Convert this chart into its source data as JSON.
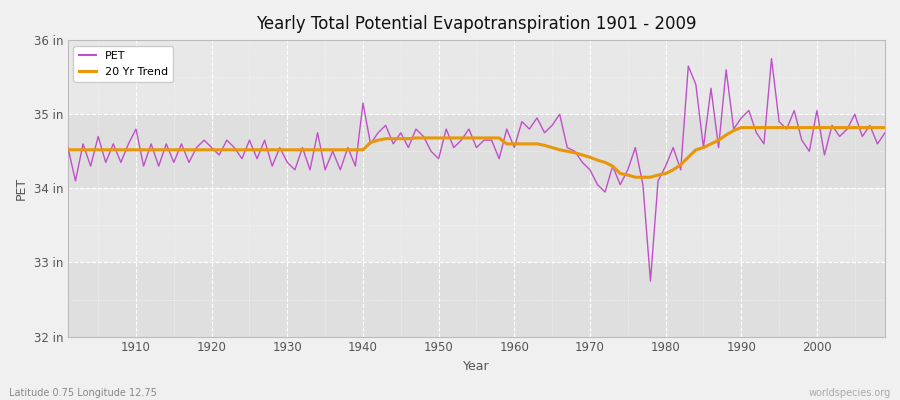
{
  "title": "Yearly Total Potential Evapotranspiration 1901 - 2009",
  "xlabel": "Year",
  "ylabel": "PET",
  "subtitle_lat_lon": "Latitude 0.75 Longitude 12.75",
  "watermark": "worldspecies.org",
  "ylim": [
    32,
    36
  ],
  "yticks": [
    32,
    33,
    34,
    35,
    36
  ],
  "ytick_labels": [
    "32 in",
    "33 in",
    "34 in",
    "35 in",
    "36 in"
  ],
  "xlim": [
    1901,
    2009
  ],
  "xticks": [
    1910,
    1920,
    1930,
    1940,
    1950,
    1960,
    1970,
    1980,
    1990,
    2000
  ],
  "pet_color": "#c050c8",
  "trend_color": "#e8960a",
  "bg_color": "#f0f0f0",
  "plot_bg_color": "#e8e8e8",
  "grid_color": "#ffffff",
  "pet_linewidth": 1.0,
  "trend_linewidth": 2.2,
  "years": [
    1901,
    1902,
    1903,
    1904,
    1905,
    1906,
    1907,
    1908,
    1909,
    1910,
    1911,
    1912,
    1913,
    1914,
    1915,
    1916,
    1917,
    1918,
    1919,
    1920,
    1921,
    1922,
    1923,
    1924,
    1925,
    1926,
    1927,
    1928,
    1929,
    1930,
    1931,
    1932,
    1933,
    1934,
    1935,
    1936,
    1937,
    1938,
    1939,
    1940,
    1941,
    1942,
    1943,
    1944,
    1945,
    1946,
    1947,
    1948,
    1949,
    1950,
    1951,
    1952,
    1953,
    1954,
    1955,
    1956,
    1957,
    1958,
    1959,
    1960,
    1961,
    1962,
    1963,
    1964,
    1965,
    1966,
    1967,
    1968,
    1969,
    1970,
    1971,
    1972,
    1973,
    1974,
    1975,
    1976,
    1977,
    1978,
    1979,
    1980,
    1981,
    1982,
    1983,
    1984,
    1985,
    1986,
    1987,
    1988,
    1989,
    1990,
    1991,
    1992,
    1993,
    1994,
    1995,
    1996,
    1997,
    1998,
    1999,
    2000,
    2001,
    2002,
    2003,
    2004,
    2005,
    2006,
    2007,
    2008,
    2009
  ],
  "pet_values": [
    34.55,
    34.1,
    34.6,
    34.3,
    34.7,
    34.35,
    34.6,
    34.35,
    34.6,
    34.8,
    34.3,
    34.6,
    34.3,
    34.6,
    34.35,
    34.6,
    34.35,
    34.55,
    34.65,
    34.55,
    34.45,
    34.65,
    34.55,
    34.4,
    34.65,
    34.4,
    34.65,
    34.3,
    34.55,
    34.35,
    34.25,
    34.55,
    34.25,
    34.75,
    34.25,
    34.5,
    34.25,
    34.55,
    34.3,
    35.15,
    34.6,
    34.75,
    34.85,
    34.6,
    34.75,
    34.55,
    34.8,
    34.7,
    34.5,
    34.4,
    34.8,
    34.55,
    34.65,
    34.8,
    34.55,
    34.65,
    34.65,
    34.4,
    34.8,
    34.55,
    34.9,
    34.8,
    34.95,
    34.75,
    34.85,
    35.0,
    34.55,
    34.5,
    34.35,
    34.25,
    34.05,
    33.95,
    34.3,
    34.05,
    34.25,
    34.55,
    34.05,
    32.75,
    34.1,
    34.3,
    34.55,
    34.25,
    35.65,
    35.4,
    34.55,
    35.35,
    34.55,
    35.6,
    34.8,
    34.95,
    35.05,
    34.75,
    34.6,
    35.75,
    34.9,
    34.8,
    35.05,
    34.65,
    34.5,
    35.05,
    34.45,
    34.85,
    34.7,
    34.8,
    35.0,
    34.7,
    34.85,
    34.6,
    34.75
  ],
  "trend_values": [
    34.52,
    34.52,
    34.52,
    34.52,
    34.52,
    34.52,
    34.52,
    34.52,
    34.52,
    34.52,
    34.52,
    34.52,
    34.52,
    34.52,
    34.52,
    34.52,
    34.52,
    34.52,
    34.52,
    34.52,
    34.52,
    34.52,
    34.52,
    34.52,
    34.52,
    34.52,
    34.52,
    34.52,
    34.52,
    34.52,
    34.52,
    34.52,
    34.52,
    34.52,
    34.52,
    34.52,
    34.52,
    34.52,
    34.52,
    34.52,
    34.62,
    34.65,
    34.67,
    34.67,
    34.67,
    34.67,
    34.68,
    34.68,
    34.68,
    34.68,
    34.68,
    34.68,
    34.68,
    34.68,
    34.68,
    34.68,
    34.68,
    34.68,
    34.6,
    34.6,
    34.6,
    34.6,
    34.6,
    34.58,
    34.55,
    34.52,
    34.5,
    34.48,
    34.45,
    34.42,
    34.38,
    34.35,
    34.3,
    34.2,
    34.18,
    34.15,
    34.15,
    34.15,
    34.18,
    34.2,
    34.25,
    34.32,
    34.42,
    34.52,
    34.55,
    34.6,
    34.65,
    34.72,
    34.78,
    34.82,
    34.82,
    34.82,
    34.82,
    34.82,
    34.82,
    34.82,
    34.82,
    34.82,
    34.82,
    34.82,
    34.82,
    34.82,
    34.82,
    34.82,
    34.82,
    34.82,
    34.82,
    34.82,
    34.82
  ]
}
